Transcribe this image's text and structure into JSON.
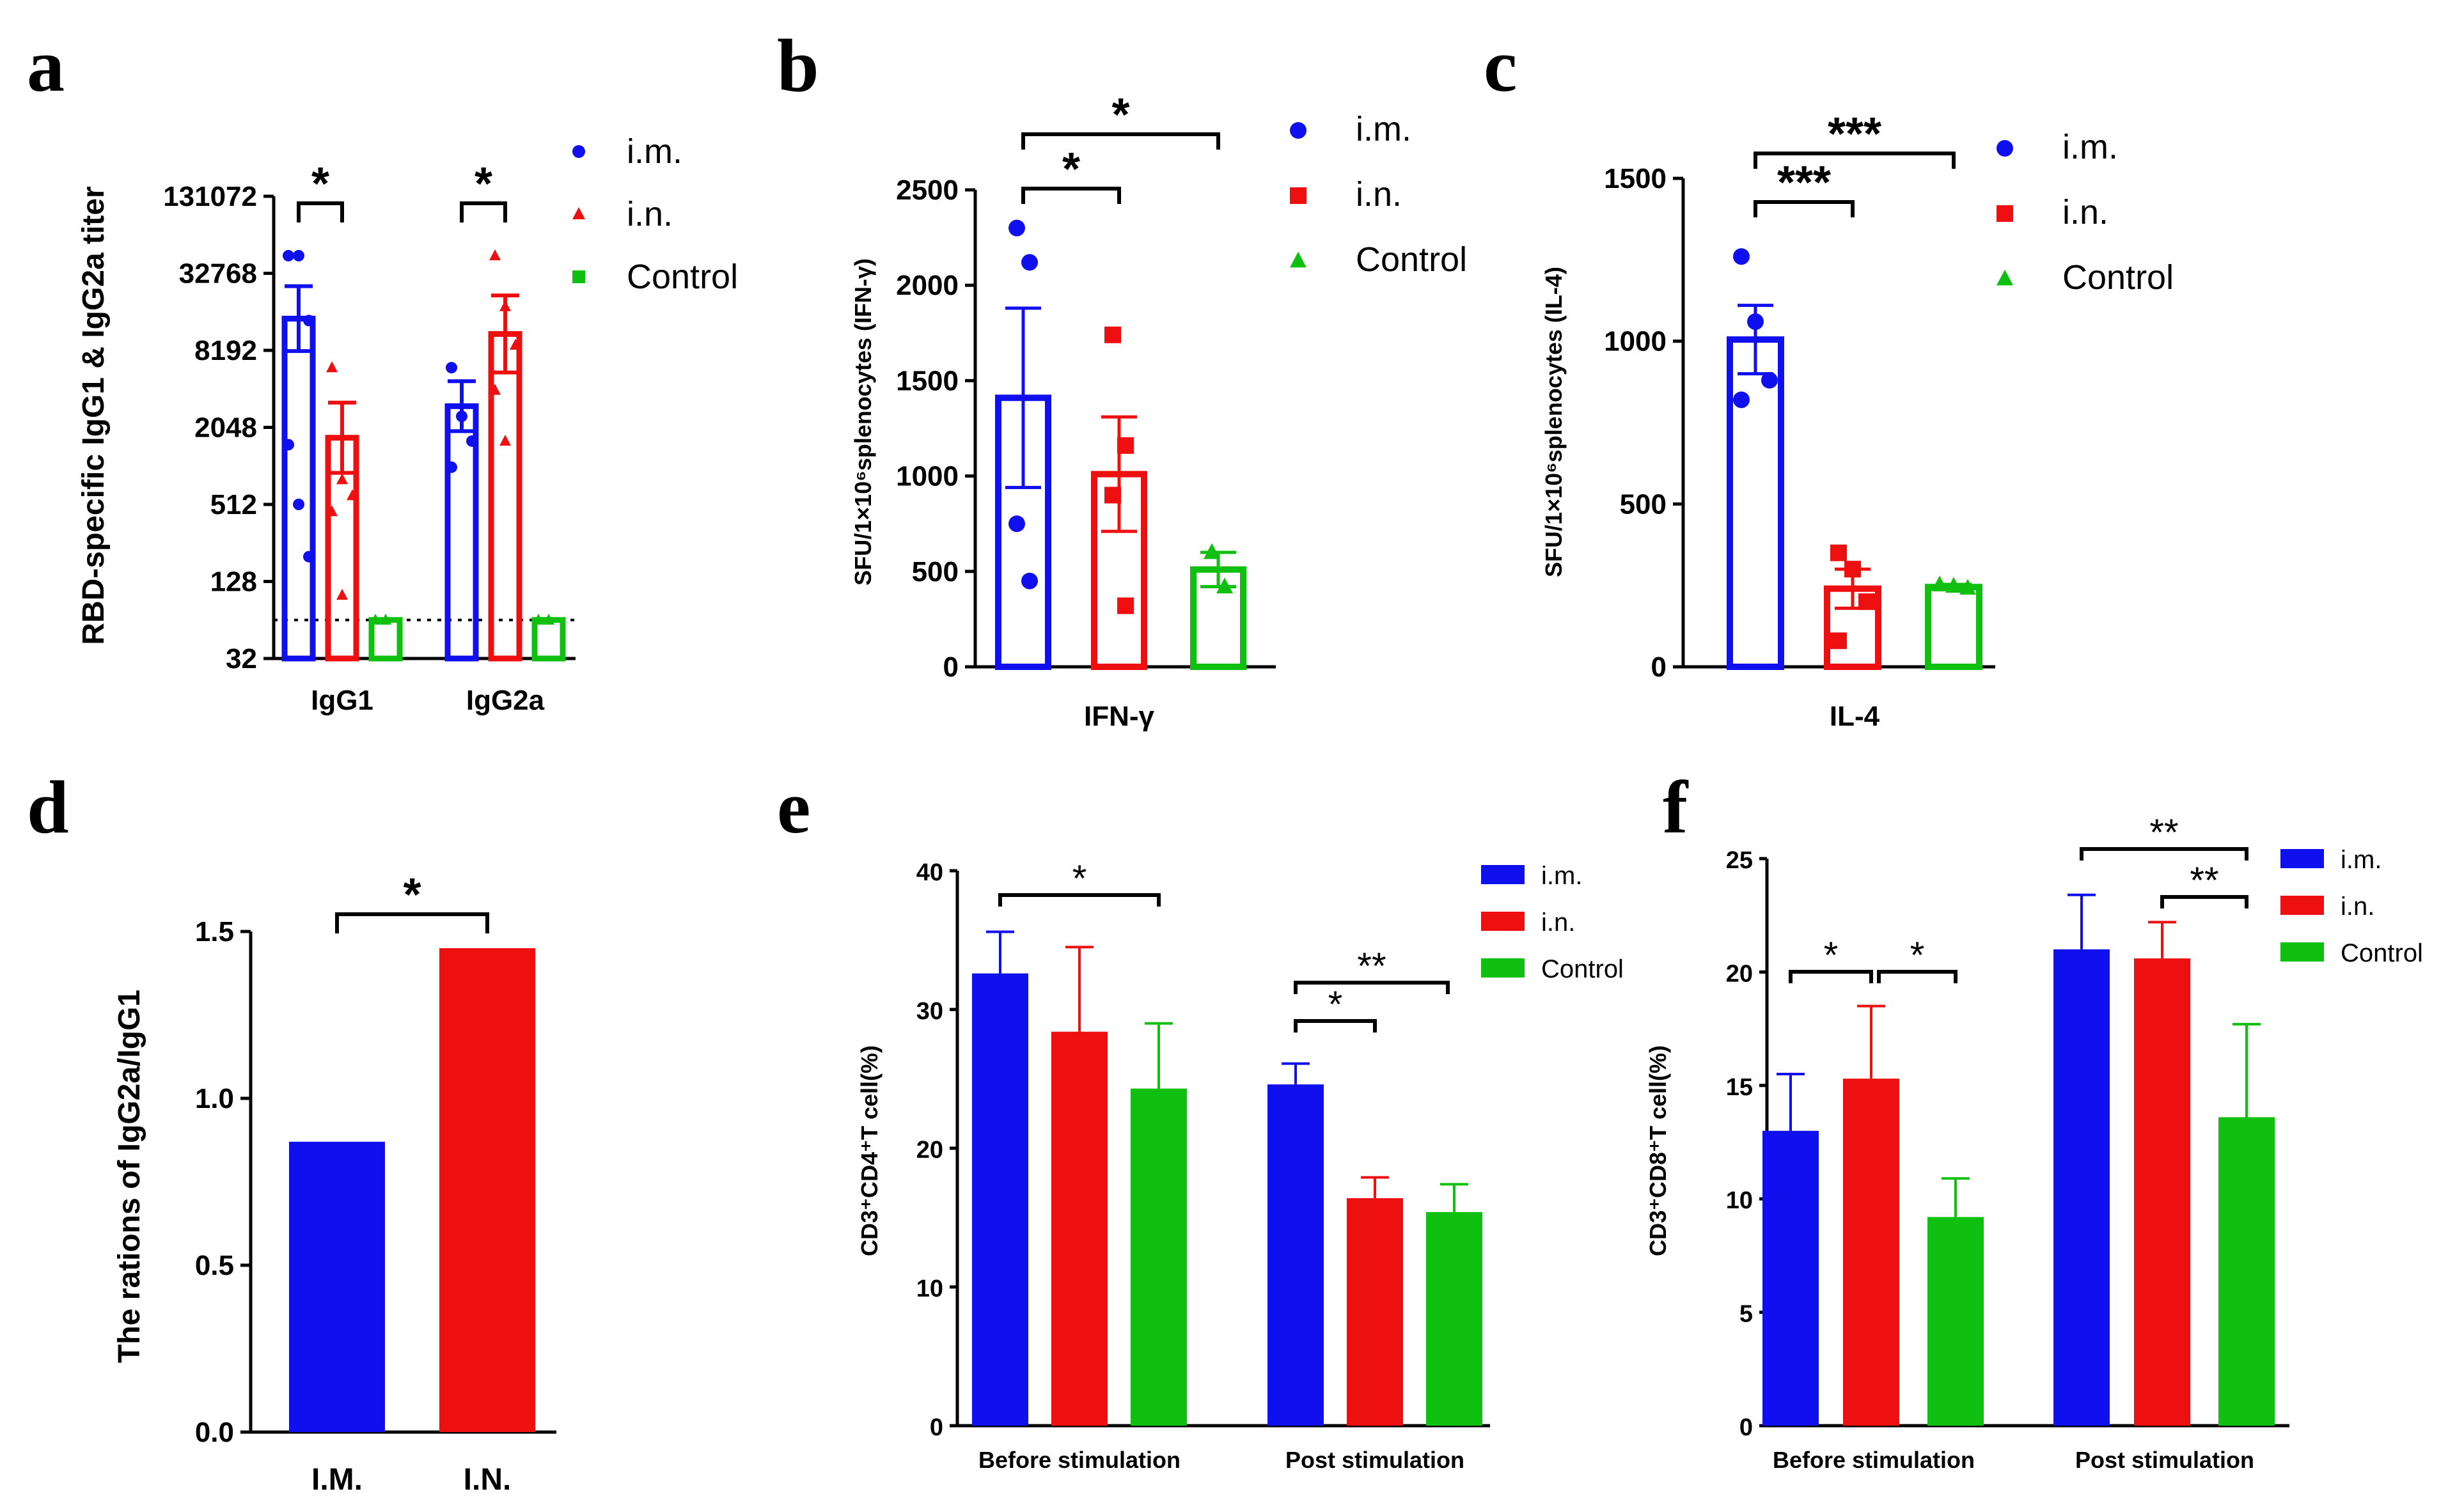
{
  "colors": {
    "im": "#1010ee",
    "in": "#ee1010",
    "control": "#10c010"
  },
  "chart_data": [
    {
      "panel": "a",
      "type": "bar",
      "ylabel": "RBD-specific IgG1 & IgG2a titer",
      "yscale": "log2",
      "ylim": [
        32,
        131072
      ],
      "yticks": [
        "131072",
        "32768",
        "8192",
        "2048",
        "512",
        "128",
        "32"
      ],
      "categories": [
        "IgG1",
        "IgG2a"
      ],
      "detection_limit": 64,
      "series": [
        {
          "name": "i.m.",
          "values": [
            14500,
            3000
          ],
          "error": [
            26000,
            4700
          ],
          "points": [
            [
              45000,
              45000,
              14000,
              1500,
              512,
              200
            ],
            [
              6000,
              2500,
              1600,
              1000
            ]
          ]
        },
        {
          "name": "i.n.",
          "values": [
            1700,
            11000
          ],
          "error": [
            3200,
            22000
          ],
          "points": [
            [
              6000,
              800,
              600,
              450,
              100
            ],
            [
              45000,
              18000,
              9000,
              4000,
              1600
            ]
          ]
        },
        {
          "name": "Control",
          "values": [
            64,
            64
          ],
          "error": [
            64,
            64
          ],
          "points": [
            [
              64,
              64
            ],
            [
              64,
              64
            ]
          ]
        }
      ],
      "legend": [
        "i.m.",
        "i.n.",
        "Control"
      ],
      "legend_position": "top-right",
      "significance": [
        {
          "category": 0,
          "from": "i.m.",
          "to": "i.n.",
          "label": "*"
        },
        {
          "category": 1,
          "from": "i.m.",
          "to": "i.n.",
          "label": "*"
        }
      ]
    },
    {
      "panel": "b",
      "type": "bar",
      "ylabel": "SFU/1×10⁶splenocytes (IFN-γ)",
      "ylim": [
        0,
        2500
      ],
      "yticks": [
        "0",
        "500",
        "1000",
        "1500",
        "2000",
        "2500"
      ],
      "categories": [
        "IFN-γ"
      ],
      "series": [
        {
          "name": "i.m.",
          "values": [
            1410
          ],
          "error": [
            470
          ],
          "points": [
            2300,
            2120,
            750,
            450
          ]
        },
        {
          "name": "i.n.",
          "values": [
            1010
          ],
          "error": [
            300
          ],
          "points": [
            1740,
            1160,
            900,
            320
          ]
        },
        {
          "name": "Control",
          "values": [
            510
          ],
          "error": [
            90
          ],
          "points": [
            600,
            420
          ]
        }
      ],
      "legend": [
        "i.m.",
        "i.n.",
        "Control"
      ],
      "legend_position": "top-right",
      "significance": [
        {
          "from": "i.m.",
          "to": "i.n.",
          "label": "*"
        },
        {
          "from": "i.m.",
          "to": "Control",
          "label": "*"
        }
      ]
    },
    {
      "panel": "c",
      "type": "bar",
      "ylabel": "SFU/1×10⁶splenocytes (IL-4)",
      "ylim": [
        0,
        1500
      ],
      "yticks": [
        "0",
        "500",
        "1000",
        "1500"
      ],
      "categories": [
        "IL-4"
      ],
      "series": [
        {
          "name": "i.m.",
          "values": [
            1005
          ],
          "error": [
            105
          ],
          "points": [
            1260,
            1060,
            880,
            820
          ]
        },
        {
          "name": "i.n.",
          "values": [
            240
          ],
          "error": [
            60
          ],
          "points": [
            350,
            300,
            200,
            80
          ]
        },
        {
          "name": "Control",
          "values": [
            245
          ],
          "error": [
            8
          ],
          "points": [
            252,
            248,
            242
          ]
        }
      ],
      "legend": [
        "i.m.",
        "i.n.",
        "Control"
      ],
      "legend_position": "top-right",
      "significance": [
        {
          "from": "i.m.",
          "to": "i.n.",
          "label": "***"
        },
        {
          "from": "i.m.",
          "to": "Control",
          "label": "***"
        }
      ]
    },
    {
      "panel": "d",
      "type": "bar",
      "ylabel": "The rations of IgG2a/IgG1",
      "ylim": [
        0,
        1.5
      ],
      "yticks": [
        "0.0",
        "0.5",
        "1.0",
        "1.5"
      ],
      "categories": [
        "I.M.",
        "I.N."
      ],
      "values": [
        0.87,
        1.45
      ],
      "significance": [
        {
          "from": "I.M.",
          "to": "I.N.",
          "label": "*"
        }
      ]
    },
    {
      "panel": "e",
      "type": "bar",
      "ylabel": "CD3⁺CD4⁺T cell(%)",
      "ylim": [
        0,
        40
      ],
      "yticks": [
        "0",
        "10",
        "20",
        "30",
        "40"
      ],
      "categories": [
        "Before stimulation",
        "Post stimulation"
      ],
      "series": [
        {
          "name": "i.m.",
          "values": [
            32.6,
            24.6
          ],
          "error": [
            3.0,
            1.5
          ]
        },
        {
          "name": "i.n.",
          "values": [
            28.4,
            16.4
          ],
          "error": [
            6.1,
            1.5
          ]
        },
        {
          "name": "Control",
          "values": [
            24.3,
            15.4
          ],
          "error": [
            4.7,
            2.0
          ]
        }
      ],
      "legend": [
        "i.m.",
        "i.n.",
        "Control"
      ],
      "legend_position": "top-right",
      "significance": [
        {
          "category": 0,
          "from": "i.m.",
          "to": "Control",
          "label": "*"
        },
        {
          "category": 1,
          "from": "i.m.",
          "to": "i.n.",
          "label": "*"
        },
        {
          "category": 1,
          "from": "i.m.",
          "to": "Control",
          "label": "**"
        }
      ]
    },
    {
      "panel": "f",
      "type": "bar",
      "ylabel": "CD3⁺CD8⁺T cell(%)",
      "ylim": [
        0,
        25
      ],
      "yticks": [
        "0",
        "5",
        "10",
        "15",
        "20",
        "25"
      ],
      "categories": [
        "Before stimulation",
        "Post stimulation"
      ],
      "series": [
        {
          "name": "i.m.",
          "values": [
            13.0,
            21.0
          ],
          "error": [
            2.5,
            2.4
          ]
        },
        {
          "name": "i.n.",
          "values": [
            15.3,
            20.6
          ],
          "error": [
            3.2,
            1.6
          ]
        },
        {
          "name": "Control",
          "values": [
            9.2,
            13.6
          ],
          "error": [
            1.7,
            4.1
          ]
        }
      ],
      "legend": [
        "i.m.",
        "i.n.",
        "Control"
      ],
      "legend_position": "top-right",
      "significance": [
        {
          "category": 0,
          "from": "i.m.",
          "to": "i.n.",
          "label": "*"
        },
        {
          "category": 0,
          "from": "i.n.",
          "to": "Control",
          "label": "*"
        },
        {
          "category": 1,
          "from": "i.m.",
          "to": "Control",
          "label": "**"
        },
        {
          "category": 1,
          "from": "i.n.",
          "to": "Control",
          "label": "**"
        }
      ]
    }
  ]
}
